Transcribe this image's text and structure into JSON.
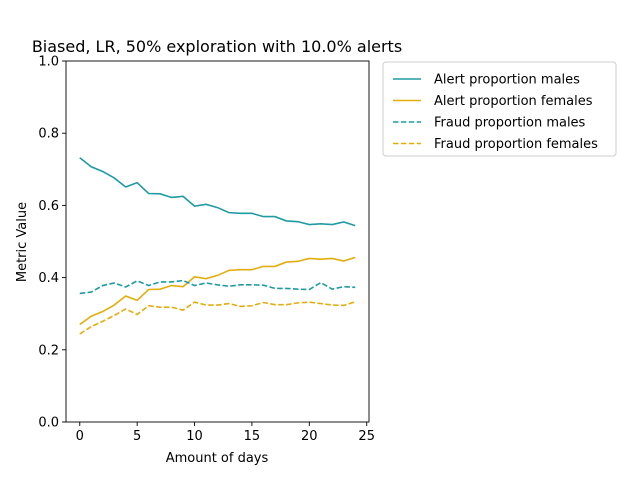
{
  "chart_data": {
    "type": "line",
    "title": "Biased, LR, 50% exploration with 10.0% alerts",
    "xlabel": "Amount of days",
    "ylabel": "Metric Value",
    "xlim": [
      -1.2,
      25.2
    ],
    "ylim": [
      0.0,
      1.0
    ],
    "xticks": [
      0,
      5,
      10,
      15,
      20,
      25
    ],
    "yticks": [
      0.0,
      0.2,
      0.4,
      0.6,
      0.8,
      1.0
    ],
    "xtick_labels": [
      "0",
      "5",
      "10",
      "15",
      "20",
      "25"
    ],
    "ytick_labels": [
      "0.0",
      "0.2",
      "0.4",
      "0.6",
      "0.8",
      "1.0"
    ],
    "grid": false,
    "legend_position": "outside-top-right",
    "x": [
      0,
      1,
      2,
      3,
      4,
      5,
      6,
      7,
      8,
      9,
      10,
      11,
      12,
      13,
      14,
      15,
      16,
      17,
      18,
      19,
      20,
      21,
      22,
      23,
      24
    ],
    "series": [
      {
        "name": "Alert proportion males",
        "color": "#1f9ba3",
        "dash": "solid",
        "values": [
          0.732,
          0.707,
          0.694,
          0.676,
          0.651,
          0.663,
          0.633,
          0.632,
          0.622,
          0.625,
          0.598,
          0.603,
          0.594,
          0.58,
          0.578,
          0.578,
          0.569,
          0.569,
          0.557,
          0.555,
          0.547,
          0.549,
          0.547,
          0.554,
          0.544
        ]
      },
      {
        "name": "Alert proportion females",
        "color": "#e3ad0c",
        "dash": "solid",
        "values": [
          0.27,
          0.293,
          0.306,
          0.324,
          0.349,
          0.337,
          0.367,
          0.368,
          0.378,
          0.375,
          0.402,
          0.397,
          0.406,
          0.42,
          0.422,
          0.422,
          0.431,
          0.431,
          0.443,
          0.445,
          0.453,
          0.451,
          0.453,
          0.446,
          0.456
        ]
      },
      {
        "name": "Fraud proportion males",
        "color": "#1f9ba3",
        "dash": "dashed",
        "values": [
          0.356,
          0.36,
          0.378,
          0.385,
          0.374,
          0.391,
          0.378,
          0.388,
          0.388,
          0.392,
          0.378,
          0.385,
          0.38,
          0.376,
          0.38,
          0.38,
          0.379,
          0.37,
          0.37,
          0.368,
          0.367,
          0.386,
          0.368,
          0.375,
          0.373
        ]
      },
      {
        "name": "Fraud proportion females",
        "color": "#e3ad0c",
        "dash": "dashed",
        "values": [
          0.244,
          0.264,
          0.279,
          0.295,
          0.313,
          0.298,
          0.322,
          0.318,
          0.318,
          0.31,
          0.332,
          0.324,
          0.324,
          0.328,
          0.32,
          0.322,
          0.331,
          0.325,
          0.325,
          0.33,
          0.332,
          0.328,
          0.324,
          0.323,
          0.333
        ]
      }
    ]
  }
}
